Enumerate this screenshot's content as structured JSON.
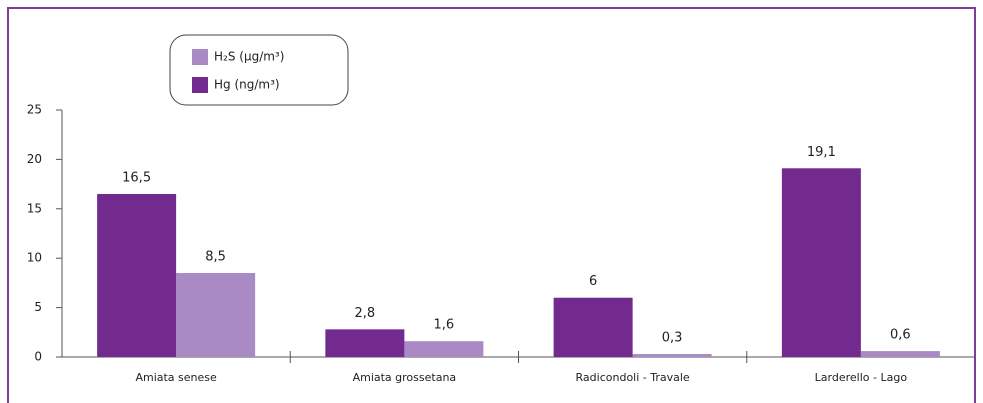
{
  "chart_data": {
    "type": "bar",
    "categories": [
      "Amiata senese",
      "Amiata grossetana",
      "Radicondoli - Travale",
      "Larderello - Lago"
    ],
    "series": [
      {
        "name": "H₂S (µg/m³)",
        "color": "#a98ac4",
        "values": [
          8.5,
          1.6,
          0.3,
          0.6
        ],
        "value_labels": [
          "8,5",
          "1,6",
          "0,3",
          "0,6"
        ]
      },
      {
        "name": "Hg (ng/m³)",
        "color": "#732a8e",
        "values": [
          16.5,
          2.8,
          6,
          19.1
        ],
        "value_labels": [
          "16,5",
          "2,8",
          "6",
          "19,1"
        ]
      }
    ],
    "ylim": [
      0,
      25
    ],
    "yticks": [
      0,
      5,
      10,
      15,
      20,
      25
    ],
    "legend": "top-left"
  }
}
